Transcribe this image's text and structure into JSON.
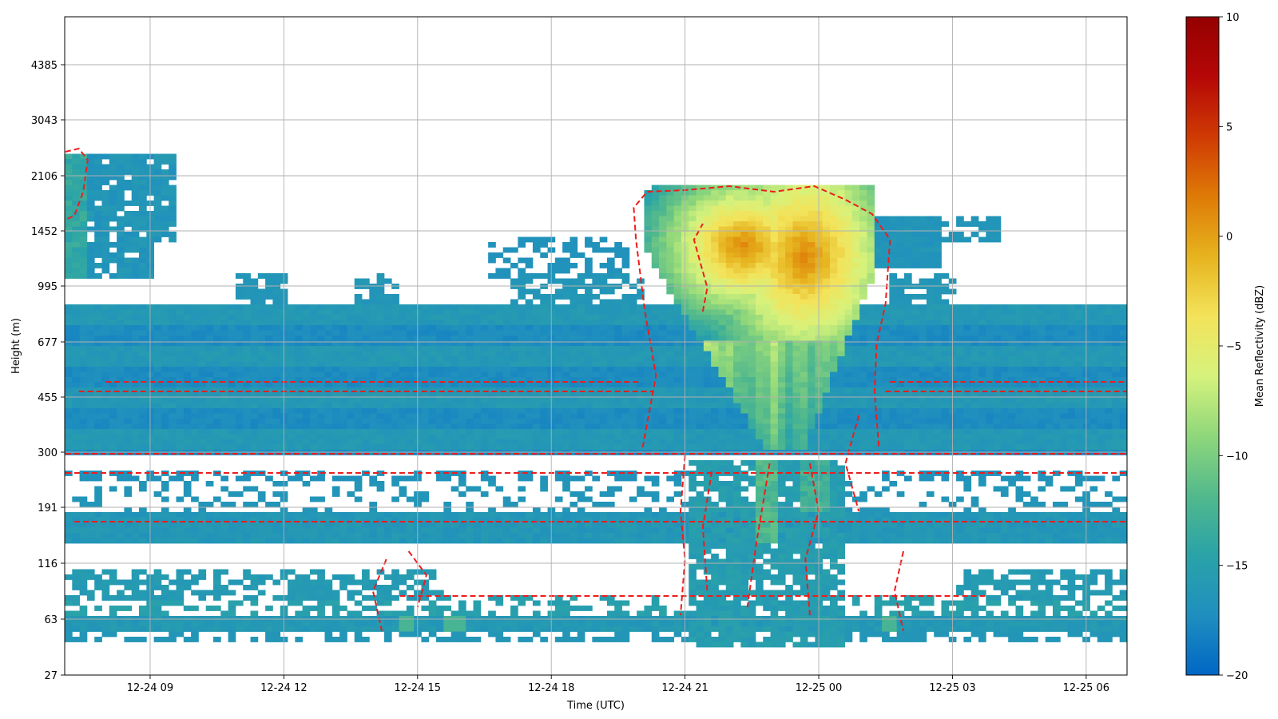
{
  "chart_data": {
    "type": "heatmap",
    "xlabel": "Time (UTC)",
    "ylabel": "Height (m)",
    "x_start_time": "12-24 07:05",
    "x_end_time": "12-25 06:55",
    "x_ticks": [
      "12-24 09",
      "12-24 12",
      "12-24 15",
      "12-24 18",
      "12-24 21",
      "12-25 00",
      "12-25 03",
      "12-25 06"
    ],
    "y_ticks": [
      "27",
      "63",
      "116",
      "191",
      "300",
      "455",
      "677",
      "995",
      "1452",
      "2106",
      "3043",
      "4385"
    ],
    "y_scale": "nonlinear (range-gate index)",
    "grid": true,
    "colorbar": {
      "label": "Mean Reflectivity (dBZ)",
      "min": -20,
      "max": 10,
      "ticks": [
        "10",
        "5",
        "0",
        "−5",
        "−10",
        "−15",
        "−20"
      ],
      "colormap": [
        "#0067c5",
        "#1f8fbf",
        "#2aa3a8",
        "#52b98c",
        "#8fd77b",
        "#d6f27c",
        "#f3e35a",
        "#e6b31e",
        "#de7a06",
        "#cf3a04",
        "#b50707",
        "#950000"
      ]
    },
    "contour": {
      "color": "#ee1c1c",
      "style": "dashed"
    },
    "features": [
      {
        "desc": "strong echo core",
        "time_start": "12-24 20:00",
        "time_end": "12-25 01:00",
        "height_top": 2000,
        "peak_dbz": 1
      },
      {
        "desc": "background clutter layer",
        "height_min": 300,
        "height_max": 860,
        "dbz": -15
      },
      {
        "desc": "upper echo left",
        "time_start": "12-24 07:05",
        "time_end": "12-24 09:40",
        "height_min": 1000,
        "height_max": 2500,
        "dbz": -15
      }
    ]
  }
}
